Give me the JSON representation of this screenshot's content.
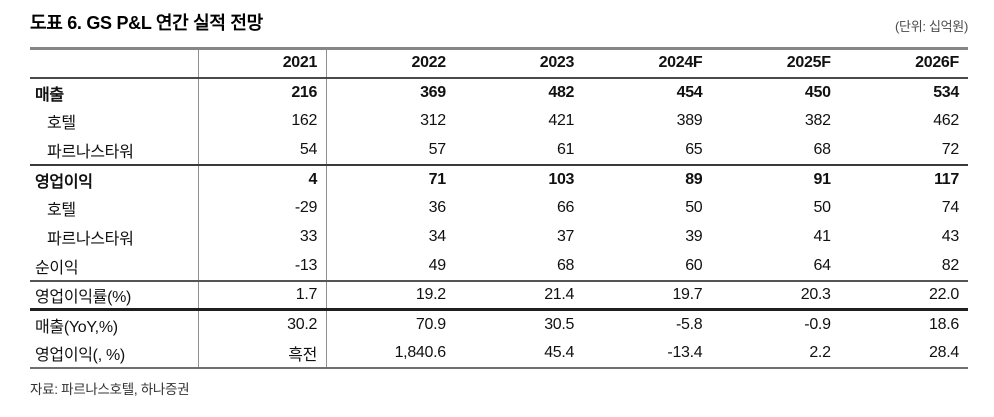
{
  "header": {
    "title": "도표 6. GS P&L 연간 실적 전망",
    "unit_label": "(단위: 십억원)"
  },
  "chart_data": {
    "type": "table",
    "title": "도표 6. GS P&L 연간 실적 전망",
    "unit": "십억원",
    "columns": [
      "",
      "2021",
      "2022",
      "2023",
      "2024F",
      "2025F",
      "2026F"
    ],
    "rows": [
      {
        "label": "매출",
        "bold": true,
        "indent": false,
        "values": [
          "216",
          "369",
          "482",
          "454",
          "450",
          "534"
        ]
      },
      {
        "label": "호텔",
        "bold": false,
        "indent": true,
        "values": [
          "162",
          "312",
          "421",
          "389",
          "382",
          "462"
        ]
      },
      {
        "label": "파르나스타워",
        "bold": false,
        "indent": true,
        "values": [
          "54",
          "57",
          "61",
          "65",
          "68",
          "72"
        ]
      },
      {
        "label": "영업이익",
        "bold": true,
        "indent": false,
        "values": [
          "4",
          "71",
          "103",
          "89",
          "91",
          "117"
        ]
      },
      {
        "label": "호텔",
        "bold": false,
        "indent": true,
        "values": [
          "-29",
          "36",
          "66",
          "50",
          "50",
          "74"
        ]
      },
      {
        "label": "파르나스타워",
        "bold": false,
        "indent": true,
        "values": [
          "33",
          "34",
          "37",
          "39",
          "41",
          "43"
        ]
      },
      {
        "label": "순이익",
        "bold": false,
        "indent": false,
        "values": [
          "-13",
          "49",
          "68",
          "60",
          "64",
          "82"
        ]
      },
      {
        "label": "영업이익률(%)",
        "bold": false,
        "indent": false,
        "values": [
          "1.7",
          "19.2",
          "21.4",
          "19.7",
          "20.3",
          "22.0"
        ]
      },
      {
        "label": "매출(YoY,%)",
        "bold": false,
        "indent": false,
        "values": [
          "30.2",
          "70.9",
          "30.5",
          "-5.8",
          "-0.9",
          "18.6"
        ]
      },
      {
        "label": "영업이익(, %)",
        "bold": false,
        "indent": false,
        "values": [
          "흑전",
          "1,840.6",
          "45.4",
          "-13.4",
          "2.2",
          "28.4"
        ]
      }
    ]
  },
  "footer": {
    "source": "자료: 파르나스호텔, 하나증권"
  },
  "colors": {
    "text": "#111111",
    "unit_text": "#4a4a4a",
    "table_top_border": "#868686",
    "header_rule": "#4a4a4a",
    "section_rule": "#3a3a3a"
  }
}
